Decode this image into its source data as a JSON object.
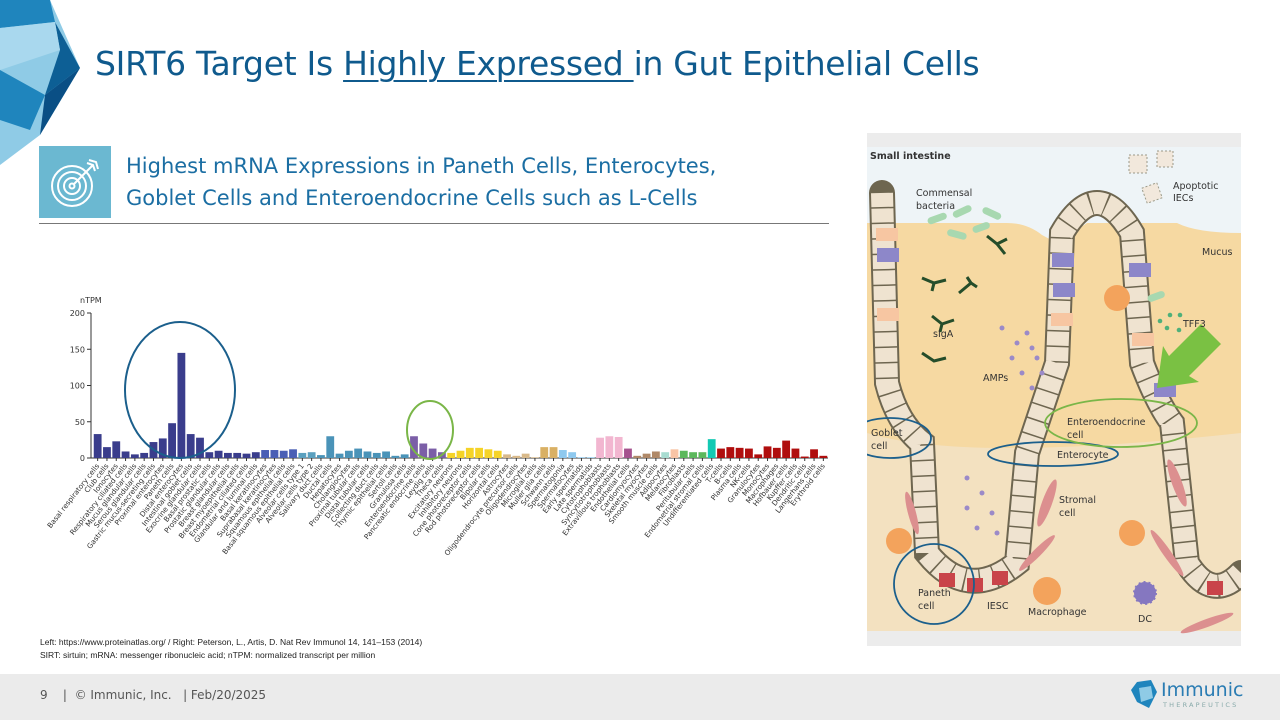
{
  "slide": {
    "title_pre": "SIRT6 Target Is ",
    "title_underlined": "Highly Expressed ",
    "title_post": "in Gut Epithelial Cells",
    "subtitle_line1": "Highest mRNA Expressions in Paneth Cells, Enterocytes,",
    "subtitle_line2": "Goblet Cells and Enteroendocrine Cells such as L-Cells",
    "subtitle_icon": "target-icon",
    "refs_line1": "Left: https://www.proteinatlas.org/ / Right: Peterson, L., Artis, D. Nat Rev Immunol 14, 141–153 (2014)",
    "refs_line2": "SIRT: sirtuin; mRNA: messenger ribonucleic acid; nTPM: normalized transcript per million"
  },
  "footer": {
    "text": "9    |  © Immunic, Inc.   | Feb/20/2025",
    "logo_name": "Immunic",
    "logo_sub": "THERAPEUTICS"
  },
  "diagram": {
    "title": "Small intestine",
    "labels": {
      "commensal_1": "Commensal",
      "commensal_2": "bacteria",
      "apoptotic_1": "Apoptotic",
      "apoptotic_2": "IECs",
      "mucus": "Mucus",
      "siga": "sIgA",
      "amps": "AMPs",
      "tff3": "TFF3",
      "enteroendocrine_1": "Enteroendocrine",
      "enteroendocrine_2": "cell",
      "goblet_1": "Goblet",
      "goblet_2": "cell",
      "enterocyte": "Enterocyte",
      "stromal_1": "Stromal",
      "stromal_2": "cell",
      "paneth_1": "Paneth",
      "paneth_2": "cell",
      "iesc": "IESC",
      "macrophage": "Macrophage",
      "dc": "DC"
    },
    "highlight_colors": {
      "blue": "#1b5f8c",
      "green": "#7ab648"
    }
  },
  "chart_data": {
    "type": "bar",
    "title": "",
    "xlabel": "",
    "ylabel": "nTPM",
    "ylim": [
      0,
      200
    ],
    "yticks": [
      "0",
      "50",
      "100",
      "150",
      "200"
    ],
    "grid": false,
    "highlight_colors": {
      "paneth_enterocyte_goblet": "#1b5f8c",
      "enteroendocrine": "#7ab648"
    },
    "categories": [
      "Basal respiratory cells",
      "Club cells",
      "Ionocytes",
      "Respiratory ciliated cells",
      "Mucus glandular cells",
      "Serous glandular cells",
      "Gastric mucus-secreting cells",
      "Proximal enterocytes",
      "Paneth cells",
      "Distal enterocytes",
      "Intestinal goblet cells",
      "Exocrine glandular cells",
      "Basal prostatic cells",
      "Prostatic glandular cells",
      "Breast glandular cells",
      "Breast myoepithelial cells",
      "Endometrial ciliated cells",
      "Glandular and luminal cells",
      "Basal keratinocytes",
      "Suprabasal keratinocytes",
      "Squamous epithelial cells",
      "Basal squamous epithelial cells",
      "Alveolar cells type 1",
      "Alveolar cells type 2",
      "Salivary duct cells",
      "Ductal cells",
      "Hepatocytes",
      "Cholangiocytes",
      "Proximal tubular cells",
      "Distal tubular cells",
      "Collecting duct cells",
      "Thymic epithelial cells",
      "Sertoli cells",
      "Granulosa cells",
      "Enteroendocrine cells",
      "Pancreatic endocrine cells",
      "Leydig cells",
      "Theca cells",
      "Excitatory neurons",
      "Inhibitory neurons",
      "Cone photoreceptor cells",
      "Rod photoreceptor cells",
      "Bipolar cells",
      "Horizontal cells",
      "Astrocytes",
      "Oligodendrocyte precursor cells",
      "Oligodendrocytes",
      "Microglial cells",
      "Muller glia cells",
      "Schwann cells",
      "Spermatogonia",
      "Spermatocytes",
      "Early spermatids",
      "Late spermatids",
      "Cytotrophoblasts",
      "Syncytiotrophoblasts",
      "Extravillous trophoblasts",
      "Endothelial cells",
      "Cardiomyocytes",
      "Skeletal myocytes",
      "Smooth muscle cells",
      "Adipocytes",
      "Melanocytes",
      "Fibroblasts",
      "Peritubular cells",
      "Endometrial stromal cells",
      "Undifferentiated cells",
      "T-cells",
      "B-cells",
      "Plasma cells",
      "NK-cells",
      "Granulocytes",
      "Monocytes",
      "Macrophages",
      "Hofbauer cells",
      "Kupffer cells",
      "Dendritic cells",
      "Langerhans cells",
      "Erythroid cells"
    ],
    "values": [
      33,
      15,
      23,
      9,
      5,
      7,
      22,
      27,
      48,
      145,
      33,
      28,
      8,
      10,
      7,
      7,
      6,
      8,
      11,
      11,
      10,
      12,
      7,
      8,
      4,
      30,
      6,
      10,
      13,
      9,
      7,
      9,
      3,
      5,
      30,
      20,
      13,
      8,
      7,
      10,
      14,
      14,
      12,
      10,
      5,
      3,
      6,
      1,
      15,
      15,
      11,
      8,
      1,
      1,
      28,
      30,
      29,
      13,
      3,
      6,
      9,
      8,
      12,
      10,
      8,
      8,
      26,
      13,
      15,
      14,
      13,
      5,
      16,
      14,
      24,
      13,
      2,
      12,
      3
    ],
    "colors": [
      "#3a3d8c",
      "#3a3d8c",
      "#3a3d8c",
      "#3a3d8c",
      "#3a3d8c",
      "#3a3d8c",
      "#3a3d8c",
      "#3a3d8c",
      "#3a3d8c",
      "#3a3d8c",
      "#3a3d8c",
      "#3a3d8c",
      "#3a3d8c",
      "#3a3d8c",
      "#3a3d8c",
      "#3a3d8c",
      "#3a3d8c",
      "#3a3d8c",
      "#4a5fb5",
      "#4a5fb5",
      "#4a5fb5",
      "#4a5fb5",
      "#5aa0bf",
      "#5aa0bf",
      "#4a93b8",
      "#4a93b8",
      "#4a93b8",
      "#4a93b8",
      "#4a93b8",
      "#4a93b8",
      "#4a93b8",
      "#4a93b8",
      "#4a93b8",
      "#4a93b8",
      "#7b5ea7",
      "#7b5ea7",
      "#7b5ea7",
      "#7b5ea7",
      "#f5d327",
      "#f5d327",
      "#f5d327",
      "#f5d327",
      "#f5d327",
      "#f5d327",
      "#d8b98a",
      "#d8b98a",
      "#d8b98a",
      "#d8b98a",
      "#d9b064",
      "#d9b064",
      "#8ec9ef",
      "#8ec9ef",
      "#8ec9ef",
      "#8ec9ef",
      "#f2b6d0",
      "#f2b6d0",
      "#f2b6d0",
      "#a5528e",
      "#b08968",
      "#b08968",
      "#b08968",
      "#a8dcd1",
      "#f8c4a5",
      "#5cb85c",
      "#5cb85c",
      "#5cb85c",
      "#13c9b3",
      "#b00e0e",
      "#b00e0e",
      "#b00e0e",
      "#b00e0e",
      "#b00e0e",
      "#b00e0e",
      "#b00e0e",
      "#b00e0e",
      "#b00e0e",
      "#b00e0e",
      "#b00e0e",
      "#b00e0e"
    ]
  }
}
